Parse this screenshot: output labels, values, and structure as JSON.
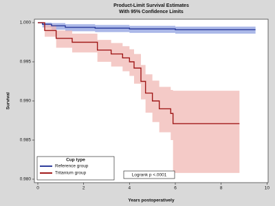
{
  "chart_data": {
    "type": "survival",
    "title": "Product-Limit Survival Estimates",
    "subtitle": "With 95% Confidence Limits",
    "x_label": "Years postoperatively",
    "y_label": "Survival",
    "legend_title": "Cup type",
    "annotation": "Logrank p <.0001",
    "legend": "lower left",
    "xlim": [
      -0.15,
      10.05
    ],
    "ylim": [
      0.97956,
      1.00044
    ],
    "xticks": [
      0,
      2,
      4,
      6,
      8,
      10
    ],
    "yticks": [
      {
        "value": 0.98,
        "label": "0.980"
      },
      {
        "value": 0.985,
        "label": "0.985"
      },
      {
        "value": 0.99,
        "label": "0.990"
      },
      {
        "value": 0.995,
        "label": "0.995"
      },
      {
        "value": 1,
        "label": "1.000"
      }
    ],
    "series": [
      {
        "name": "Reference group",
        "color": "#2b3a9a",
        "band_color": "#8fa0e0",
        "x": [
          0,
          0.2,
          0.6,
          1.2,
          2.5,
          4.0,
          6.0,
          9.5
        ],
        "values": [
          1.0,
          0.9998,
          0.9996,
          0.9994,
          0.9993,
          0.9992,
          0.9991,
          0.9991
        ],
        "lower": [
          1.0,
          0.9994,
          0.9991,
          0.9989,
          0.9988,
          0.9987,
          0.9986,
          0.9986
        ],
        "upper": [
          1.0,
          1.0,
          0.99995,
          0.9998,
          0.9997,
          0.9996,
          0.9995,
          0.9995
        ]
      },
      {
        "name": "Tritanium group",
        "color": "#a01818",
        "band_color": "#f0b8b4",
        "x": [
          0,
          0.3,
          0.8,
          1.5,
          2.6,
          3.2,
          3.7,
          4.0,
          4.2,
          4.5,
          4.7,
          5.0,
          5.3,
          5.8,
          5.9,
          8.8
        ],
        "values": [
          1.0,
          0.999,
          0.998,
          0.9975,
          0.9965,
          0.996,
          0.9955,
          0.995,
          0.9942,
          0.9925,
          0.991,
          0.99,
          0.989,
          0.9884,
          0.9871,
          0.9871
        ],
        "lower": [
          1.0,
          0.9982,
          0.9968,
          0.9962,
          0.995,
          0.9944,
          0.9938,
          0.9932,
          0.9922,
          0.9902,
          0.9885,
          0.9873,
          0.986,
          0.985,
          0.9808,
          0.9808
        ],
        "upper": [
          1.0,
          0.9997,
          0.999,
          0.9986,
          0.9978,
          0.9974,
          0.997,
          0.9966,
          0.996,
          0.9946,
          0.9934,
          0.9926,
          0.9918,
          0.9914,
          0.9913,
          0.9913
        ]
      }
    ]
  }
}
